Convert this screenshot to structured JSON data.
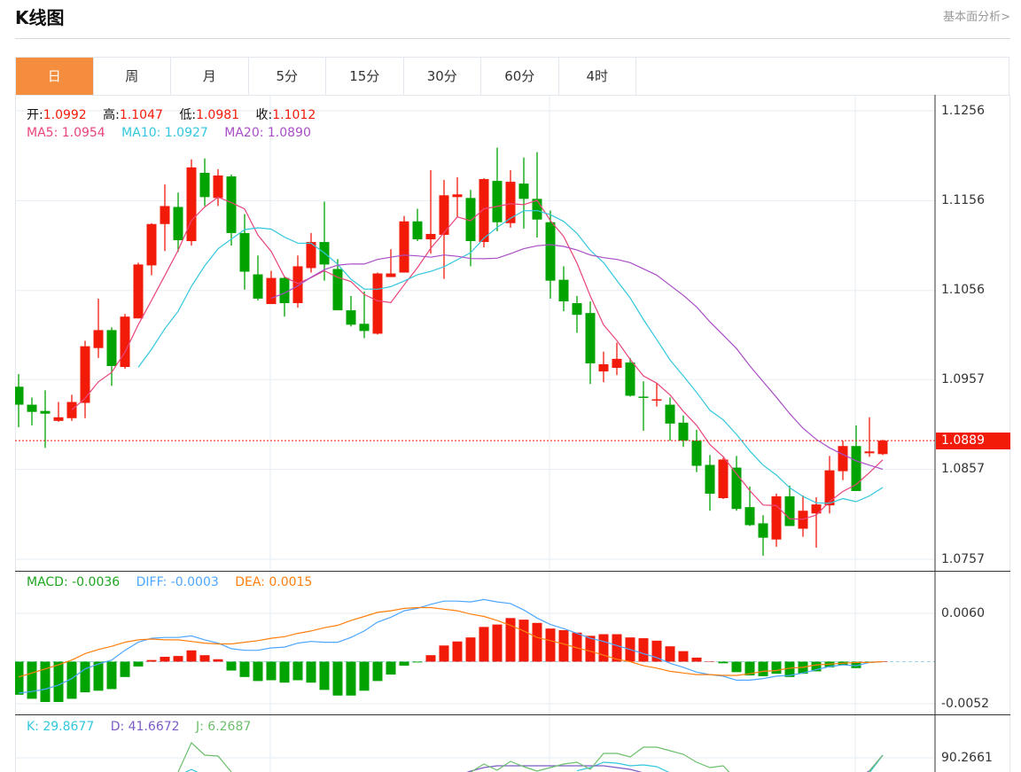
{
  "header": {
    "title": "K线图",
    "link": "基本面分析>"
  },
  "tabs": [
    {
      "label": "日",
      "active": true
    },
    {
      "label": "周"
    },
    {
      "label": "月"
    },
    {
      "label": "5分"
    },
    {
      "label": "15分"
    },
    {
      "label": "30分"
    },
    {
      "label": "60分"
    },
    {
      "label": "4时"
    }
  ],
  "legend": {
    "open_label": "开:",
    "open": "1.0992",
    "high_label": "高:",
    "high": "1.1047",
    "low_label": "低:",
    "low": "1.0981",
    "close_label": "收:",
    "close": "1.1012",
    "ma5": "MA5: 1.0954",
    "ma10": "MA10: 1.0927",
    "ma20": "MA20: 1.0890",
    "macd": "MACD: -0.0036",
    "diff": "DIFF: -0.0003",
    "dea": "DEA: 0.0015",
    "k": "K: 29.8677",
    "d": "D: 41.6672",
    "j": "J: 6.2687"
  },
  "colors": {
    "up": "#f21b0a",
    "down": "#00a300",
    "accent_tab": "#f48d3e",
    "ma5": "#e9457a",
    "ma10": "#33c7dd",
    "ma20": "#a94ec6",
    "macd": "#1fa51f",
    "diff": "#4da6ff",
    "dea": "#ff7f0e",
    "k": "#33c7dd",
    "d": "#7b5cc7",
    "j": "#6cbf6c",
    "grid": "#e6edf3"
  },
  "chart_data": [
    {
      "type": "candlestick",
      "y_ticks": [
        "1.1256",
        "1.1156",
        "1.1056",
        "1.0957",
        "1.0857",
        "1.0757"
      ],
      "ylim": [
        1.0757,
        1.1256
      ],
      "current_price": "1.0889",
      "ma_periods": [
        5,
        10,
        20
      ],
      "candle_fields": [
        "open",
        "close",
        "high",
        "low"
      ],
      "candles": [
        [
          1.0949,
          1.0929,
          1.0963,
          1.0904
        ],
        [
          1.0929,
          1.0921,
          1.0937,
          1.0906
        ],
        [
          1.0922,
          1.0919,
          1.0945,
          1.0881
        ],
        [
          1.0911,
          1.0915,
          1.0932,
          1.091
        ],
        [
          1.0914,
          1.0932,
          1.094,
          1.0911
        ],
        [
          1.0931,
          1.0994,
          1.1,
          1.0914
        ],
        [
          1.0992,
          1.1012,
          1.1047,
          1.0981
        ],
        [
          1.1012,
          1.0972,
          1.1015,
          1.095
        ],
        [
          1.0971,
          1.1027,
          1.103,
          1.0969
        ],
        [
          1.1025,
          1.1085,
          1.1087,
          1.1025
        ],
        [
          1.1084,
          1.113,
          1.1131,
          1.1073
        ],
        [
          1.113,
          1.115,
          1.1174,
          1.11
        ],
        [
          1.1149,
          1.1112,
          1.1165,
          1.1099
        ],
        [
          1.1111,
          1.1193,
          1.1202,
          1.1106
        ],
        [
          1.1187,
          1.116,
          1.1203,
          1.115
        ],
        [
          1.1159,
          1.1184,
          1.1191,
          1.115
        ],
        [
          1.1183,
          1.112,
          1.1185,
          1.1106
        ],
        [
          1.112,
          1.1077,
          1.1141,
          1.1057
        ],
        [
          1.1074,
          1.1047,
          1.1095,
          1.1045
        ],
        [
          1.1041,
          1.107,
          1.1078,
          1.1041
        ],
        [
          1.107,
          1.1042,
          1.1072,
          1.1027
        ],
        [
          1.1042,
          1.1083,
          1.1095,
          1.1037
        ],
        [
          1.1081,
          1.111,
          1.112,
          1.1076
        ],
        [
          1.111,
          1.1085,
          1.1155,
          1.1067
        ],
        [
          1.108,
          1.1034,
          1.1091,
          1.1034
        ],
        [
          1.1034,
          1.1018,
          1.105,
          1.1016
        ],
        [
          1.1019,
          1.1011,
          1.1055,
          1.1003
        ],
        [
          1.1008,
          1.1075,
          1.1076,
          1.1007
        ],
        [
          1.1071,
          1.1075,
          1.1102,
          1.1071
        ],
        [
          1.1076,
          1.1133,
          1.1139,
          1.1076
        ],
        [
          1.1133,
          1.1113,
          1.1147,
          1.1111
        ],
        [
          1.1113,
          1.1119,
          1.119,
          1.1097
        ],
        [
          1.1118,
          1.1162,
          1.1179,
          1.1069
        ],
        [
          1.116,
          1.1163,
          1.1182,
          1.1138
        ],
        [
          1.1159,
          1.1111,
          1.1168,
          1.1083
        ],
        [
          1.111,
          1.118,
          1.1181,
          1.1104
        ],
        [
          1.1178,
          1.1132,
          1.1215,
          1.1122
        ],
        [
          1.1131,
          1.1177,
          1.119,
          1.1126
        ],
        [
          1.1175,
          1.1158,
          1.1204,
          1.1125
        ],
        [
          1.1158,
          1.1135,
          1.121,
          1.1115
        ],
        [
          1.1132,
          1.1067,
          1.1145,
          1.1047
        ],
        [
          1.1068,
          1.1044,
          1.1083,
          1.1033
        ],
        [
          1.1042,
          1.1029,
          1.105,
          1.1009
        ],
        [
          1.1031,
          1.0975,
          1.1044,
          1.0952
        ],
        [
          1.0966,
          1.0974,
          1.0988,
          1.0954
        ],
        [
          1.097,
          1.098,
          1.0998,
          1.0962
        ],
        [
          1.0976,
          1.0939,
          1.0981,
          1.0938
        ],
        [
          1.0938,
          1.0937,
          1.0955,
          1.09
        ],
        [
          1.0934,
          1.0935,
          1.0953,
          1.0927
        ],
        [
          1.0929,
          1.0908,
          1.0937,
          1.0889
        ],
        [
          1.0909,
          1.0889,
          1.0917,
          1.0882
        ],
        [
          1.0889,
          1.0861,
          1.0901,
          1.0854
        ],
        [
          1.0862,
          1.083,
          1.0873,
          1.0811
        ],
        [
          1.0825,
          1.0868,
          1.087,
          1.0824
        ],
        [
          1.0859,
          1.0813,
          1.0872,
          1.0811
        ],
        [
          1.0815,
          1.0795,
          1.0838,
          1.0794
        ],
        [
          1.0797,
          1.0781,
          1.0806,
          1.0761
        ],
        [
          1.0779,
          1.0827,
          1.083,
          1.0771
        ],
        [
          1.0827,
          1.0794,
          1.0839,
          1.0794
        ],
        [
          1.0791,
          1.0811,
          1.0828,
          1.0782
        ],
        [
          1.0808,
          1.0818,
          1.0826,
          1.077
        ],
        [
          1.0817,
          1.0856,
          1.0872,
          1.0808
        ],
        [
          1.0855,
          1.0883,
          1.0889,
          1.0845
        ],
        [
          1.0883,
          1.0833,
          1.0906,
          1.0833
        ],
        [
          1.0875,
          1.0877,
          1.0915,
          1.0871
        ],
        [
          1.0874,
          1.0889,
          1.089,
          1.0873
        ]
      ]
    },
    {
      "type": "bar+line",
      "y_ticks": [
        "0.0060",
        "-0.0052"
      ],
      "macd": [
        -0.0041,
        -0.0046,
        -0.005,
        -0.005,
        -0.0046,
        -0.0038,
        -0.0036,
        -0.0034,
        -0.0019,
        -0.0006,
        0.0002,
        0.0006,
        0.0007,
        0.0014,
        0.0008,
        0.0003,
        -0.0011,
        -0.0019,
        -0.0024,
        -0.0023,
        -0.0026,
        -0.0023,
        -0.0026,
        -0.0035,
        -0.0042,
        -0.0042,
        -0.0036,
        -0.0024,
        -0.0016,
        -0.0005,
        -0.0001,
        0.0008,
        0.002,
        0.0025,
        0.003,
        0.0043,
        0.0046,
        0.0054,
        0.0052,
        0.0048,
        0.0041,
        0.0039,
        0.0036,
        0.0032,
        0.0034,
        0.0034,
        0.003,
        0.0029,
        0.0026,
        0.0019,
        0.0013,
        0.0005,
        0.0,
        -0.0002,
        -0.0013,
        -0.0017,
        -0.0018,
        -0.0015,
        -0.0019,
        -0.0015,
        -0.0012,
        -0.0007,
        -0.0004,
        -0.0008,
        -0.0001,
        0.0
      ],
      "diff": [
        -0.0039,
        -0.0037,
        -0.0034,
        -0.0029,
        -0.0021,
        -0.0009,
        -0.0003,
        0.0002,
        0.0014,
        0.0024,
        0.0029,
        0.003,
        0.003,
        0.0032,
        0.0027,
        0.0023,
        0.0016,
        0.0014,
        0.0014,
        0.0017,
        0.0018,
        0.0023,
        0.0025,
        0.0024,
        0.0024,
        0.003,
        0.0038,
        0.0049,
        0.0055,
        0.0063,
        0.0066,
        0.0071,
        0.0075,
        0.0075,
        0.0074,
        0.0077,
        0.0074,
        0.0072,
        0.0064,
        0.0054,
        0.0046,
        0.0041,
        0.0035,
        0.0029,
        0.0025,
        0.002,
        0.0015,
        0.001,
        0.0005,
        -0.0002,
        -0.0007,
        -0.0013,
        -0.0016,
        -0.0018,
        -0.0023,
        -0.0023,
        -0.0021,
        -0.0018,
        -0.0017,
        -0.0014,
        -0.001,
        -0.0006,
        -0.0004,
        -0.0005,
        -0.0001,
        0.0
      ],
      "dea": [
        -0.0019,
        -0.0014,
        -0.0009,
        -0.0004,
        0.0002,
        0.001,
        0.0015,
        0.0019,
        0.0024,
        0.0027,
        0.0028,
        0.0027,
        0.0027,
        0.0025,
        0.0023,
        0.0022,
        0.0022,
        0.0024,
        0.0026,
        0.0029,
        0.0031,
        0.0035,
        0.0038,
        0.0042,
        0.0045,
        0.0051,
        0.0056,
        0.0061,
        0.0063,
        0.0066,
        0.0067,
        0.0067,
        0.0065,
        0.0063,
        0.0059,
        0.0056,
        0.0051,
        0.0045,
        0.0038,
        0.003,
        0.0026,
        0.0022,
        0.0017,
        0.0013,
        0.0008,
        0.0003,
        0.0,
        -0.0005,
        -0.0008,
        -0.0012,
        -0.0014,
        -0.0016,
        -0.0016,
        -0.0017,
        -0.0017,
        -0.0015,
        -0.0012,
        -0.0011,
        -0.0008,
        -0.0007,
        -0.0004,
        -0.0003,
        -0.0002,
        -0.0001,
        -0.0001,
        0.0
      ]
    },
    {
      "type": "line",
      "y_ticks": [
        "90.2661"
      ],
      "k": [
        null,
        null,
        null,
        null,
        null,
        null,
        null,
        null,
        null,
        null,
        null,
        null,
        65,
        74,
        65,
        null,
        null,
        null,
        null,
        null,
        null,
        null,
        null,
        null,
        null,
        null,
        null,
        null,
        null,
        null,
        null,
        null,
        null,
        null,
        null,
        null,
        null,
        null,
        null,
        null,
        null,
        null,
        72,
        76.5,
        84,
        82.8,
        79,
        80.3,
        77.8,
        69,
        60,
        null,
        null,
        null,
        null,
        null,
        null,
        null,
        null,
        null,
        null,
        null,
        null,
        60,
        69,
        94
      ],
      "d": [
        null,
        null,
        null,
        null,
        null,
        null,
        null,
        null,
        null,
        null,
        null,
        null,
        null,
        null,
        null,
        null,
        null,
        null,
        null,
        null,
        null,
        null,
        null,
        null,
        null,
        null,
        null,
        null,
        null,
        null,
        null,
        null,
        null,
        65,
        71.5,
        76.5,
        79,
        79,
        79,
        79,
        79,
        79,
        79,
        79,
        79,
        76.5,
        74,
        69,
        60,
        null,
        null,
        null,
        null,
        null,
        null,
        null,
        null,
        null,
        null,
        null,
        null,
        null,
        null,
        60,
        72,
        94
      ],
      "j": [
        null,
        null,
        null,
        null,
        null,
        null,
        null,
        null,
        null,
        null,
        null,
        null,
        70.3,
        111.5,
        94,
        92.8,
        70.3,
        null,
        null,
        null,
        null,
        null,
        null,
        null,
        null,
        null,
        null,
        null,
        null,
        null,
        null,
        null,
        null,
        null,
        70,
        81.5,
        72.8,
        85.3,
        77.8,
        71.5,
        76.5,
        81.5,
        84,
        74,
        96.5,
        96.5,
        91.5,
        105.3,
        105.3,
        100.3,
        95.3,
        84,
        76.5,
        79,
        59,
        null,
        null,
        null,
        null,
        null,
        null,
        null,
        null,
        50,
        71.5,
        94
      ]
    }
  ]
}
